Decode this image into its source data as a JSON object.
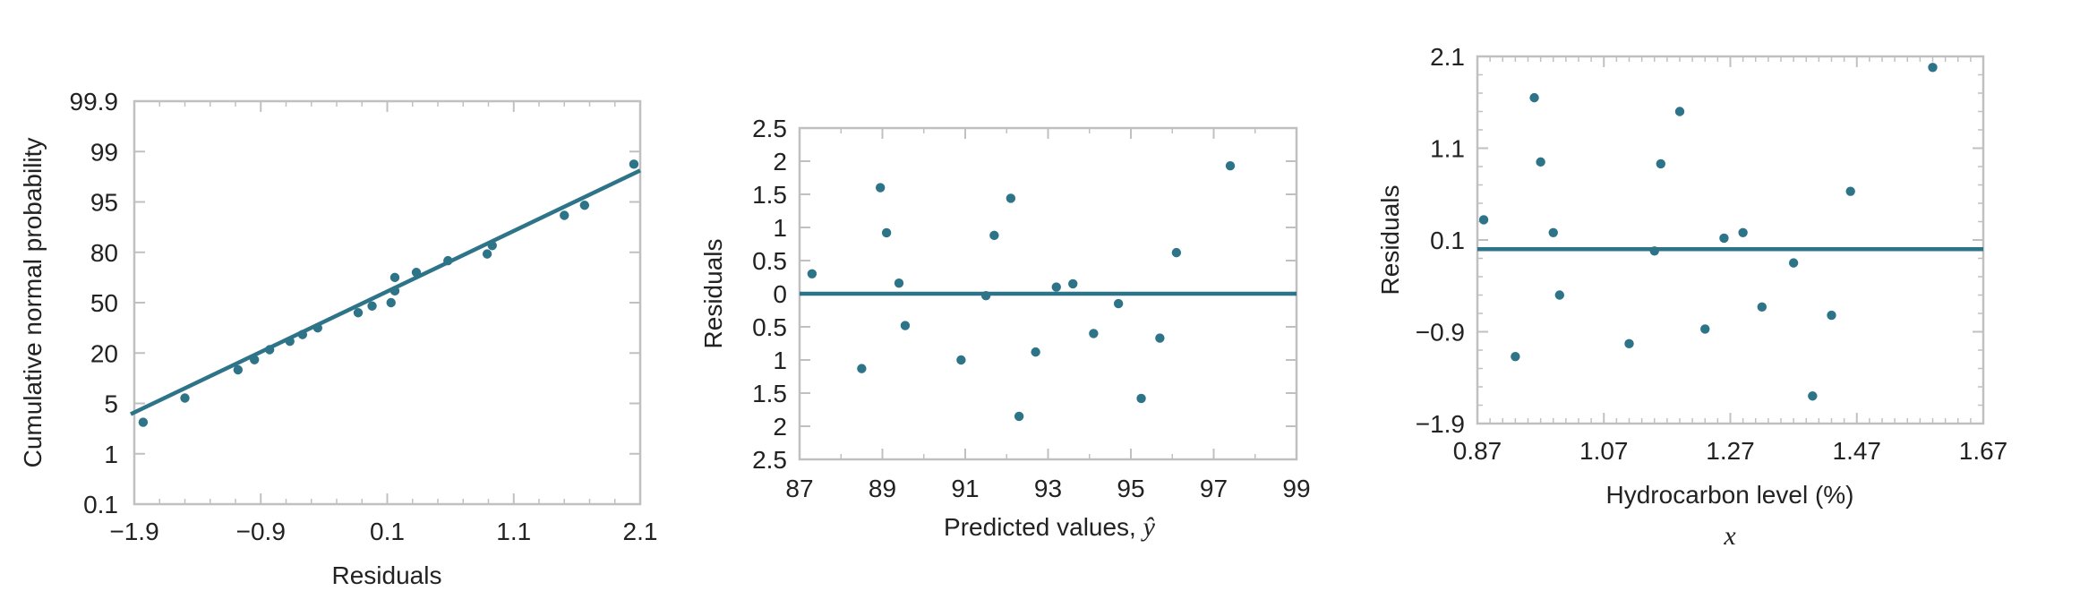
{
  "colors": {
    "series": "#2e7489",
    "frame": "#c0c0c0",
    "text": "#222222"
  },
  "chart_data": [
    {
      "type": "scatter",
      "title": "",
      "xlabel": "Residuals",
      "ylabel": "Cumulative normal probability",
      "x_ticks": [
        "−1.9",
        "−0.9",
        "0.1",
        "1.1",
        "2.1"
      ],
      "y_ticks": [
        "0.1",
        "1",
        "5",
        "20",
        "50",
        "80",
        "95",
        "99",
        "99.9"
      ],
      "xlim": [
        -1.9,
        2.1
      ],
      "y_scale": "normal-probability",
      "grid": false,
      "fit_line": {
        "x": [
          -1.9,
          2.1
        ],
        "p": [
          4.5,
          97.5
        ]
      },
      "points": [
        {
          "x": -1.83,
          "p": 3.5
        },
        {
          "x": -1.5,
          "p": 6.6
        },
        {
          "x": -1.08,
          "p": 15
        },
        {
          "x": -0.95,
          "p": 18
        },
        {
          "x": -0.83,
          "p": 22
        },
        {
          "x": -0.67,
          "p": 27
        },
        {
          "x": -0.57,
          "p": 31
        },
        {
          "x": -0.45,
          "p": 35
        },
        {
          "x": -0.13,
          "p": 44
        },
        {
          "x": -0.02,
          "p": 48
        },
        {
          "x": 0.13,
          "p": 50
        },
        {
          "x": 0.16,
          "p": 57
        },
        {
          "x": 0.16,
          "p": 65
        },
        {
          "x": 0.33,
          "p": 68
        },
        {
          "x": 0.58,
          "p": 75
        },
        {
          "x": 0.89,
          "p": 79
        },
        {
          "x": 0.93,
          "p": 82
        },
        {
          "x": 1.5,
          "p": 91
        },
        {
          "x": 1.66,
          "p": 94
        },
        {
          "x": 2.05,
          "p": 98
        }
      ]
    },
    {
      "type": "scatter",
      "title": "",
      "xlabel": "Predicted values, ",
      "xlabel_symbol": "ŷ",
      "ylabel": "Residuals",
      "x_ticks": [
        "87",
        "89",
        "91",
        "93",
        "95",
        "97",
        "99"
      ],
      "y_ticks": [
        "2.5",
        "2",
        "1.5",
        "1",
        "0.5",
        "0",
        "0.5",
        "1",
        "1.5",
        "2",
        "2.5"
      ],
      "xlim": [
        87,
        99
      ],
      "ylim": [
        -2.5,
        2.5
      ],
      "grid": false,
      "reference_line_y": 0,
      "points": [
        {
          "x": 87.3,
          "y": 0.3
        },
        {
          "x": 88.5,
          "y": -1.13
        },
        {
          "x": 88.95,
          "y": 1.6
        },
        {
          "x": 89.1,
          "y": 0.92
        },
        {
          "x": 89.4,
          "y": 0.16
        },
        {
          "x": 89.55,
          "y": -0.48
        },
        {
          "x": 90.9,
          "y": -1.0
        },
        {
          "x": 91.5,
          "y": -0.03
        },
        {
          "x": 91.7,
          "y": 0.88
        },
        {
          "x": 92.1,
          "y": 1.44
        },
        {
          "x": 92.3,
          "y": -1.85
        },
        {
          "x": 92.7,
          "y": -0.88
        },
        {
          "x": 93.2,
          "y": 0.1
        },
        {
          "x": 93.6,
          "y": 0.15
        },
        {
          "x": 94.1,
          "y": -0.6
        },
        {
          "x": 94.7,
          "y": -0.15
        },
        {
          "x": 95.25,
          "y": -1.58
        },
        {
          "x": 95.7,
          "y": -0.67
        },
        {
          "x": 96.1,
          "y": 0.62
        },
        {
          "x": 97.4,
          "y": 1.93
        }
      ]
    },
    {
      "type": "scatter",
      "title": "",
      "xlabel": "Hydrocarbon level (%)",
      "xlabel2": "x",
      "ylabel": "Residuals",
      "x_ticks": [
        "0.87",
        "1.07",
        "1.27",
        "1.47",
        "1.67"
      ],
      "y_ticks": [
        "2.1",
        "1.1",
        "0.1",
        "−0.9",
        "−1.9"
      ],
      "xlim": [
        0.87,
        1.67
      ],
      "ylim": [
        -1.9,
        2.1
      ],
      "grid": false,
      "reference_line_y": 0.0,
      "points": [
        {
          "x": 0.88,
          "y": 0.32
        },
        {
          "x": 0.93,
          "y": -1.17
        },
        {
          "x": 0.96,
          "y": 1.65
        },
        {
          "x": 0.97,
          "y": 0.95
        },
        {
          "x": 0.99,
          "y": 0.18
        },
        {
          "x": 1.0,
          "y": -0.5
        },
        {
          "x": 1.11,
          "y": -1.03
        },
        {
          "x": 1.15,
          "y": -0.02
        },
        {
          "x": 1.16,
          "y": 0.93
        },
        {
          "x": 1.19,
          "y": 1.5
        },
        {
          "x": 1.23,
          "y": -0.87
        },
        {
          "x": 1.26,
          "y": 0.12
        },
        {
          "x": 1.29,
          "y": 0.18
        },
        {
          "x": 1.32,
          "y": -0.63
        },
        {
          "x": 1.37,
          "y": -0.15
        },
        {
          "x": 1.4,
          "y": -1.6
        },
        {
          "x": 1.43,
          "y": -0.72
        },
        {
          "x": 1.46,
          "y": 0.63
        },
        {
          "x": 1.59,
          "y": 1.98
        }
      ]
    }
  ]
}
